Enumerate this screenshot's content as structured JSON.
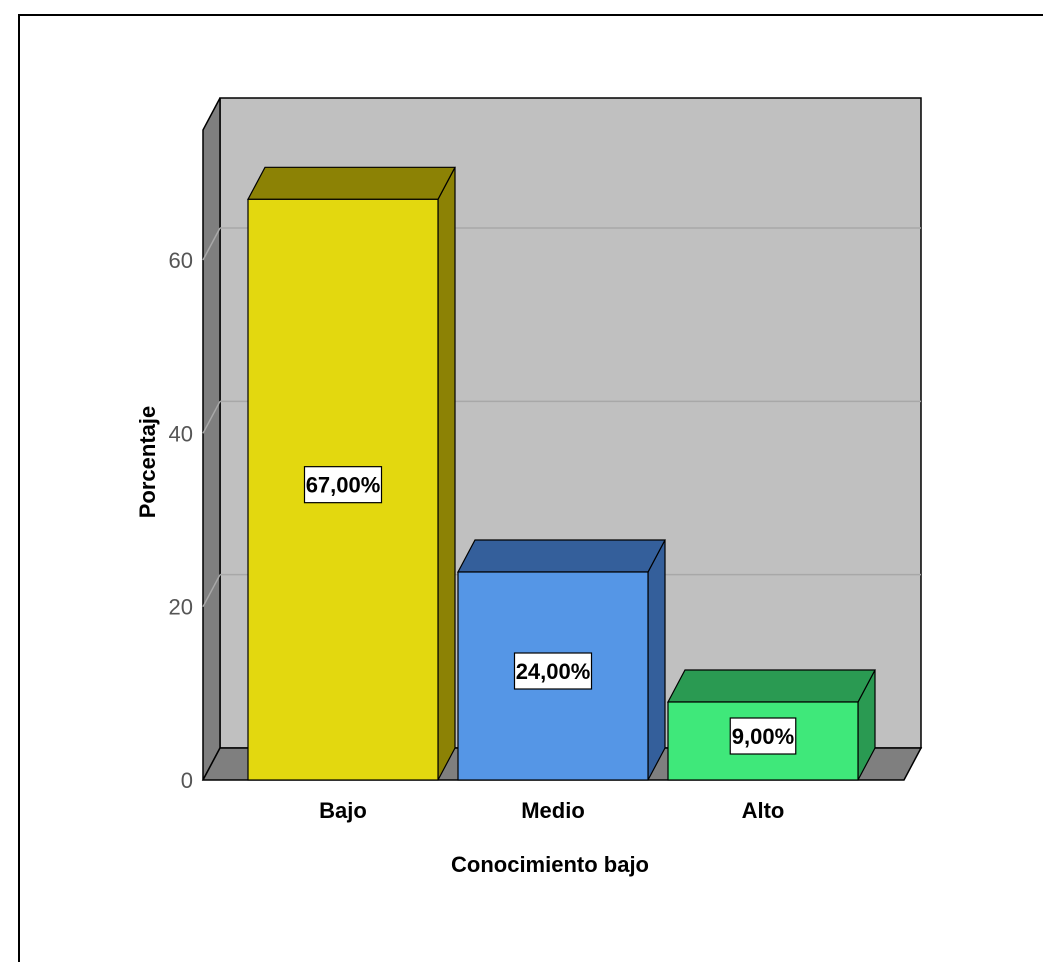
{
  "chart_data": {
    "type": "bar",
    "categories": [
      "Bajo",
      "Medio",
      "Alto"
    ],
    "values": [
      67,
      24,
      9
    ],
    "data_labels": [
      "67,00%",
      "24,00%",
      "9,00%"
    ],
    "xlabel": "Conocimiento bajo",
    "ylabel": "Porcentaje",
    "ylim": [
      0,
      75
    ],
    "yticks": [
      0,
      20,
      40,
      60
    ],
    "grid": true,
    "style": "3d",
    "colors": {
      "front": [
        "#e3d80f",
        "#5596e6",
        "#3fe87a"
      ],
      "top": [
        "#8c8205",
        "#345f9b",
        "#2a9a52"
      ],
      "side": [
        "#8c8205",
        "#345f9b",
        "#2a9a52"
      ],
      "wall": "#c0c0c0",
      "floor": "#7f7f7f",
      "gridline": "#a8a8a8"
    }
  }
}
